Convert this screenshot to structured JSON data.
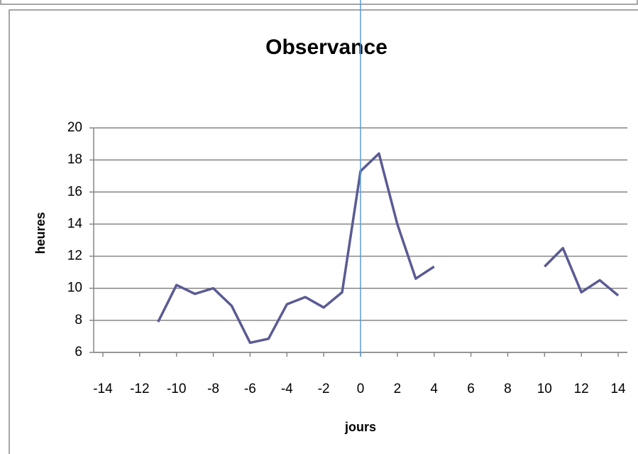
{
  "chart_data": {
    "type": "line",
    "title": "Observance",
    "x_label": "jours",
    "y_label": "heures",
    "x": [
      -11,
      -10,
      -9,
      -8,
      -7,
      -6,
      -5,
      -4,
      -3,
      -2,
      -1,
      0,
      1,
      2,
      3,
      4,
      5,
      6,
      7,
      8,
      9,
      10,
      11,
      12,
      13,
      14
    ],
    "series": [
      {
        "name": "Observance",
        "color": "#5a5b94",
        "values": [
          7.9,
          10.2,
          9.65,
          10.0,
          8.9,
          6.6,
          6.85,
          9.0,
          9.45,
          8.8,
          9.75,
          17.3,
          18.4,
          14.0,
          10.6,
          11.35,
          null,
          null,
          null,
          null,
          null,
          11.35,
          12.5,
          9.75,
          10.5,
          9.55
        ]
      }
    ],
    "xlim": [
      -14.5,
      14.5
    ],
    "xticks": [
      -14,
      -12,
      -10,
      -8,
      -6,
      -4,
      -2,
      0,
      2,
      4,
      6,
      8,
      10,
      12,
      14
    ],
    "ylim": [
      6,
      20
    ],
    "yticks": [
      6,
      8,
      10,
      12,
      14,
      16,
      18,
      20
    ],
    "grid": true,
    "legend": false,
    "vline": 0,
    "vline_color": "#5b9bd5"
  }
}
